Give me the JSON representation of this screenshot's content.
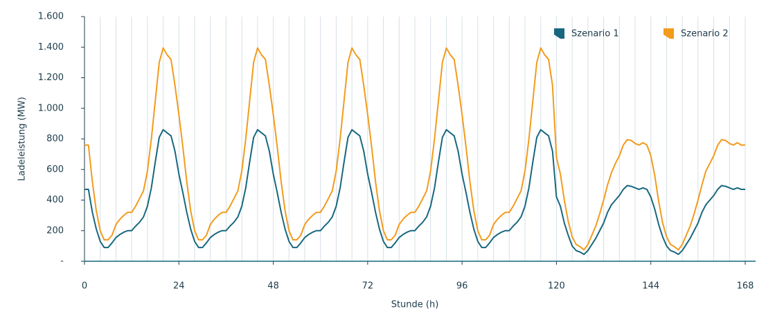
{
  "chart_data": {
    "type": "line",
    "y_label": "Ladeleistung (MW)",
    "x_label": "Stunde (h)",
    "x": [
      0,
      1,
      2,
      3,
      4,
      5,
      6,
      7,
      8,
      9,
      10,
      11,
      12,
      13,
      14,
      15,
      16,
      17,
      18,
      19,
      20,
      21,
      22,
      23,
      24,
      25,
      26,
      27,
      28,
      29,
      30,
      31,
      32,
      33,
      34,
      35,
      36,
      37,
      38,
      39,
      40,
      41,
      42,
      43,
      44,
      45,
      46,
      47,
      48,
      49,
      50,
      51,
      52,
      53,
      54,
      55,
      56,
      57,
      58,
      59,
      60,
      61,
      62,
      63,
      64,
      65,
      66,
      67,
      68,
      69,
      70,
      71,
      72,
      73,
      74,
      75,
      76,
      77,
      78,
      79,
      80,
      81,
      82,
      83,
      84,
      85,
      86,
      87,
      88,
      89,
      90,
      91,
      92,
      93,
      94,
      95,
      96,
      97,
      98,
      99,
      100,
      101,
      102,
      103,
      104,
      105,
      106,
      107,
      108,
      109,
      110,
      111,
      112,
      113,
      114,
      115,
      116,
      117,
      118,
      119,
      120,
      121,
      122,
      123,
      124,
      125,
      126,
      127,
      128,
      129,
      130,
      131,
      132,
      133,
      134,
      135,
      136,
      137,
      138,
      139,
      140,
      141,
      142,
      143,
      144,
      145,
      146,
      147,
      148,
      149,
      150,
      151,
      152,
      153,
      154,
      155,
      156,
      157,
      158,
      159,
      160,
      161,
      162,
      163,
      164,
      165,
      166,
      167,
      168
    ],
    "series": [
      {
        "name": "Szenario 1",
        "color": "#17677f",
        "values": [
          470,
          470,
          320,
          210,
          130,
          90,
          90,
          120,
          155,
          175,
          190,
          200,
          200,
          230,
          255,
          290,
          360,
          480,
          650,
          810,
          860,
          840,
          820,
          720,
          570,
          450,
          320,
          210,
          130,
          90,
          90,
          120,
          155,
          175,
          190,
          200,
          200,
          230,
          255,
          290,
          360,
          480,
          650,
          810,
          860,
          840,
          820,
          720,
          570,
          450,
          320,
          210,
          130,
          90,
          90,
          120,
          155,
          175,
          190,
          200,
          200,
          230,
          255,
          290,
          360,
          480,
          650,
          810,
          860,
          840,
          820,
          720,
          570,
          450,
          320,
          210,
          130,
          90,
          90,
          120,
          155,
          175,
          190,
          200,
          200,
          230,
          255,
          290,
          360,
          480,
          650,
          810,
          860,
          840,
          820,
          720,
          570,
          450,
          320,
          210,
          130,
          90,
          90,
          120,
          155,
          175,
          190,
          200,
          200,
          230,
          255,
          290,
          360,
          480,
          650,
          810,
          860,
          840,
          820,
          720,
          420,
          360,
          250,
          170,
          100,
          70,
          60,
          45,
          70,
          110,
          150,
          200,
          250,
          320,
          370,
          400,
          430,
          470,
          495,
          490,
          480,
          470,
          480,
          470,
          420,
          340,
          240,
          160,
          100,
          70,
          60,
          45,
          70,
          110,
          150,
          200,
          250,
          320,
          370,
          400,
          430,
          470,
          495,
          490,
          480,
          470,
          480,
          470,
          470
        ]
      },
      {
        "name": "Szenario 2",
        "color": "#f29b1c",
        "values": [
          760,
          760,
          520,
          330,
          200,
          140,
          140,
          170,
          240,
          275,
          300,
          320,
          320,
          360,
          410,
          460,
          590,
          800,
          1050,
          1300,
          1395,
          1350,
          1320,
          1150,
          960,
          750,
          520,
          330,
          200,
          140,
          140,
          170,
          240,
          275,
          300,
          320,
          320,
          360,
          410,
          460,
          590,
          800,
          1050,
          1300,
          1395,
          1350,
          1320,
          1150,
          960,
          750,
          520,
          330,
          200,
          140,
          140,
          170,
          240,
          275,
          300,
          320,
          320,
          360,
          410,
          460,
          590,
          800,
          1050,
          1300,
          1395,
          1350,
          1320,
          1150,
          960,
          750,
          520,
          330,
          200,
          140,
          140,
          170,
          240,
          275,
          300,
          320,
          320,
          360,
          410,
          460,
          590,
          800,
          1050,
          1300,
          1395,
          1350,
          1320,
          1150,
          960,
          750,
          520,
          330,
          200,
          140,
          140,
          170,
          240,
          275,
          300,
          320,
          320,
          360,
          410,
          460,
          590,
          800,
          1050,
          1300,
          1395,
          1350,
          1320,
          1150,
          680,
          570,
          400,
          260,
          160,
          110,
          95,
          75,
          110,
          170,
          230,
          310,
          400,
          500,
          580,
          640,
          690,
          760,
          795,
          790,
          770,
          760,
          775,
          760,
          690,
          560,
          390,
          250,
          160,
          110,
          95,
          75,
          110,
          170,
          230,
          310,
          400,
          500,
          590,
          640,
          690,
          760,
          795,
          790,
          770,
          760,
          775,
          760,
          760
        ]
      }
    ],
    "xlim": [
      0,
      168
    ],
    "xticks": [
      0,
      24,
      48,
      72,
      96,
      120,
      144,
      168
    ],
    "x_gridlines": [
      0,
      4,
      8,
      12,
      16,
      20,
      24,
      28,
      32,
      36,
      40,
      44,
      48,
      52,
      56,
      60,
      64,
      68,
      72,
      76,
      80,
      84,
      88,
      92,
      96,
      100,
      104,
      108,
      112,
      116,
      120,
      124,
      128,
      132,
      136,
      140,
      144,
      148,
      152,
      156,
      160,
      164,
      168
    ],
    "ylim": [
      0,
      1600
    ],
    "yticks": [
      {
        "value": 0,
        "label": "-"
      },
      200,
      400,
      600,
      800,
      {
        "value": 1000,
        "label": "1.000"
      },
      {
        "value": 1200,
        "label": "1.200"
      },
      {
        "value": 1400,
        "label": "1.400"
      },
      {
        "value": 1600,
        "label": "1.600"
      }
    ],
    "legend": "top-right"
  }
}
